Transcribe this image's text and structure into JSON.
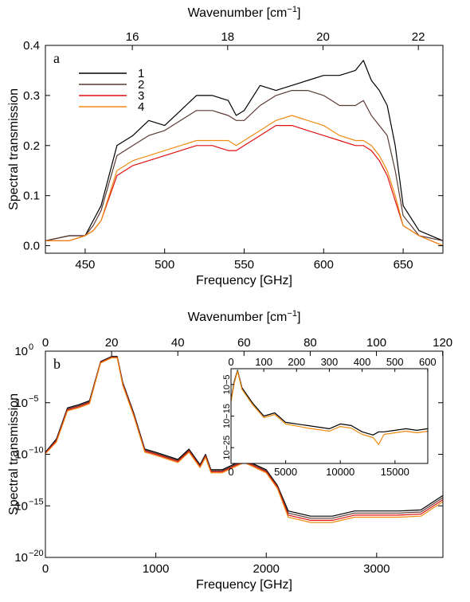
{
  "figure": "two-panel spectral transmission",
  "chart_data": [
    {
      "type": "line",
      "panel_label": "a",
      "xlabel": "Frequency [GHz]",
      "ylabel": "Spectral transmission",
      "top_xlabel": "Wavenumber [cm",
      "top_xlabel_sup": "−1",
      "top_xlabel_end": "]",
      "xlim": [
        425,
        675
      ],
      "ylim": [
        -0.015,
        0.4
      ],
      "xticks": [
        450,
        500,
        550,
        600,
        650
      ],
      "yticks": [
        0.0,
        0.1,
        0.2,
        0.3,
        0.4
      ],
      "ytick_labels": [
        "0.0",
        "0.1",
        "0.2",
        "0.3",
        "0.4"
      ],
      "top_xticks": [
        16,
        18,
        20,
        22
      ],
      "legend_position": "top-left",
      "series": [
        {
          "name": "1",
          "color": "#000000",
          "x": [
            425,
            440,
            450,
            455,
            460,
            470,
            480,
            490,
            500,
            510,
            520,
            530,
            540,
            545,
            550,
            560,
            570,
            580,
            590,
            600,
            610,
            620,
            625,
            630,
            635,
            640,
            645,
            650,
            660,
            675
          ],
          "y": [
            0.01,
            0.02,
            0.02,
            0.05,
            0.08,
            0.2,
            0.22,
            0.25,
            0.24,
            0.27,
            0.3,
            0.3,
            0.29,
            0.26,
            0.27,
            0.32,
            0.31,
            0.32,
            0.33,
            0.34,
            0.34,
            0.35,
            0.37,
            0.33,
            0.31,
            0.28,
            0.2,
            0.08,
            0.03,
            0.01
          ]
        },
        {
          "name": "2",
          "color": "#5a3a34",
          "x": [
            425,
            440,
            450,
            455,
            460,
            470,
            480,
            490,
            500,
            510,
            520,
            530,
            540,
            545,
            550,
            560,
            570,
            580,
            590,
            600,
            610,
            620,
            625,
            630,
            635,
            640,
            645,
            650,
            660,
            675
          ],
          "y": [
            0.01,
            0.02,
            0.02,
            0.04,
            0.07,
            0.18,
            0.2,
            0.22,
            0.23,
            0.25,
            0.27,
            0.27,
            0.26,
            0.25,
            0.25,
            0.28,
            0.3,
            0.31,
            0.31,
            0.3,
            0.28,
            0.28,
            0.29,
            0.26,
            0.24,
            0.22,
            0.15,
            0.06,
            0.02,
            0.01
          ]
        },
        {
          "name": "3",
          "color": "#e01010",
          "x": [
            425,
            440,
            450,
            455,
            460,
            470,
            480,
            490,
            500,
            510,
            520,
            530,
            540,
            545,
            550,
            560,
            570,
            580,
            590,
            600,
            610,
            620,
            625,
            630,
            635,
            640,
            645,
            650,
            660,
            675
          ],
          "y": [
            0.01,
            0.01,
            0.02,
            0.03,
            0.05,
            0.14,
            0.16,
            0.17,
            0.18,
            0.19,
            0.2,
            0.2,
            0.19,
            0.19,
            0.2,
            0.22,
            0.24,
            0.24,
            0.23,
            0.22,
            0.21,
            0.2,
            0.2,
            0.19,
            0.17,
            0.14,
            0.09,
            0.04,
            0.02,
            0.0
          ]
        },
        {
          "name": "4",
          "color": "#f08a10",
          "x": [
            425,
            440,
            450,
            455,
            460,
            470,
            480,
            490,
            500,
            510,
            520,
            530,
            540,
            545,
            550,
            560,
            570,
            580,
            590,
            600,
            610,
            620,
            625,
            630,
            635,
            640,
            645,
            650,
            660,
            675
          ],
          "y": [
            0.01,
            0.01,
            0.02,
            0.03,
            0.05,
            0.15,
            0.17,
            0.18,
            0.19,
            0.2,
            0.21,
            0.21,
            0.21,
            0.2,
            0.21,
            0.23,
            0.25,
            0.26,
            0.25,
            0.24,
            0.22,
            0.21,
            0.21,
            0.2,
            0.18,
            0.15,
            0.1,
            0.04,
            0.02,
            0.0
          ]
        }
      ]
    },
    {
      "type": "line",
      "panel_label": "b",
      "xlabel": "Frequency [GHz]",
      "ylabel": "Spectral transmission",
      "top_xlabel": "Wavenumber [cm",
      "top_xlabel_sup": "−1",
      "top_xlabel_end": "]",
      "xlim": [
        0,
        3600
      ],
      "ylim_log10": [
        -20,
        0
      ],
      "log_scale_y": true,
      "xticks": [
        0,
        1000,
        2000,
        3000
      ],
      "ytick_exponents": [
        0,
        -5,
        -10,
        -15,
        -20
      ],
      "top_xticks": [
        0,
        20,
        40,
        60,
        80,
        100,
        120
      ],
      "series": [
        {
          "name": "1",
          "color": "#000000",
          "x": [
            0,
            100,
            200,
            300,
            400,
            500,
            600,
            650,
            700,
            800,
            900,
            1000,
            1200,
            1300,
            1400,
            1450,
            1500,
            1600,
            1700,
            1800,
            1900,
            2000,
            2100,
            2200,
            2400,
            2600,
            2800,
            3000,
            3200,
            3400,
            3600
          ],
          "log10_y": [
            -9.8,
            -8.5,
            -5.5,
            -5.2,
            -4.8,
            -1,
            -0.5,
            -0.5,
            -3,
            -6,
            -9.5,
            -9.8,
            -10.5,
            -9.5,
            -11,
            -10,
            -11.5,
            -11.5,
            -11,
            -10.5,
            -11,
            -11.5,
            -13,
            -15.5,
            -16,
            -16,
            -15.5,
            -15.5,
            -15.5,
            -15.4,
            -14
          ]
        },
        {
          "name": "2",
          "color": "#5a3a34",
          "x": [
            0,
            100,
            200,
            300,
            400,
            500,
            600,
            650,
            700,
            800,
            900,
            1000,
            1200,
            1300,
            1400,
            1450,
            1500,
            1600,
            1700,
            1800,
            1900,
            2000,
            2100,
            2200,
            2400,
            2600,
            2800,
            3000,
            3200,
            3400,
            3600
          ],
          "log10_y": [
            -9.85,
            -8.6,
            -5.6,
            -5.3,
            -4.9,
            -1.05,
            -0.55,
            -0.55,
            -3.1,
            -6.1,
            -9.6,
            -9.9,
            -10.6,
            -9.6,
            -11.1,
            -10.1,
            -11.6,
            -11.6,
            -11.1,
            -10.6,
            -11.1,
            -11.6,
            -13.1,
            -15.7,
            -16.2,
            -16.2,
            -15.7,
            -15.7,
            -15.7,
            -15.6,
            -14.2
          ]
        },
        {
          "name": "3",
          "color": "#e01010",
          "x": [
            0,
            100,
            200,
            300,
            400,
            500,
            600,
            650,
            700,
            800,
            900,
            1000,
            1200,
            1300,
            1400,
            1450,
            1500,
            1600,
            1700,
            1800,
            1900,
            2000,
            2100,
            2200,
            2400,
            2600,
            2800,
            3000,
            3200,
            3400,
            3600
          ],
          "log10_y": [
            -9.9,
            -8.7,
            -5.7,
            -5.4,
            -5,
            -1.1,
            -0.6,
            -0.6,
            -3.2,
            -6.2,
            -9.7,
            -10,
            -10.7,
            -9.7,
            -11.2,
            -10.2,
            -11.7,
            -11.7,
            -11.2,
            -10.7,
            -11.2,
            -11.7,
            -13.2,
            -15.9,
            -16.4,
            -16.4,
            -15.9,
            -15.9,
            -15.9,
            -15.8,
            -14.4
          ]
        },
        {
          "name": "4",
          "color": "#f08a10",
          "x": [
            0,
            100,
            200,
            300,
            400,
            500,
            600,
            650,
            700,
            800,
            900,
            1000,
            1200,
            1300,
            1400,
            1450,
            1500,
            1600,
            1700,
            1800,
            1900,
            2000,
            2100,
            2200,
            2400,
            2600,
            2800,
            3000,
            3200,
            3400,
            3600
          ],
          "log10_y": [
            -9.95,
            -8.8,
            -5.8,
            -5.5,
            -5.1,
            -1.15,
            -0.65,
            -0.65,
            -3.3,
            -6.3,
            -9.8,
            -10.1,
            -10.8,
            -9.8,
            -11.3,
            -10.3,
            -11.8,
            -11.8,
            -11.3,
            -10.8,
            -11.3,
            -11.8,
            -13.3,
            -16.1,
            -16.6,
            -16.6,
            -16.1,
            -16.1,
            -16.1,
            -16,
            -14.6
          ]
        }
      ],
      "inset": {
        "xlim": [
          0,
          18000
        ],
        "xticks": [
          0,
          5000,
          10000,
          15000
        ],
        "top_xticks": [
          0,
          100,
          200,
          300,
          400,
          500,
          600
        ],
        "ylim_log10": [
          -30,
          0
        ],
        "ytick_exponents": [
          -5,
          -15,
          -25
        ],
        "series": [
          {
            "name": "1",
            "color": "#000000",
            "x": [
              0,
              300,
              600,
              1000,
              2000,
              3000,
              4000,
              5000,
              7000,
              9000,
              10000,
              11000,
              12000,
              13000,
              13500,
              14000,
              15000,
              16000,
              17000,
              18000
            ],
            "log10_y": [
              -10,
              -4,
              -0.5,
              -6,
              -11,
              -15,
              -14,
              -17,
              -18,
              -19,
              -17.5,
              -18,
              -20,
              -21,
              -20,
              -20,
              -19.5,
              -19,
              -19.5,
              -19
            ]
          },
          {
            "name": "4",
            "color": "#f08a10",
            "x": [
              0,
              300,
              600,
              1000,
              2000,
              3000,
              4000,
              5000,
              7000,
              9000,
              10000,
              11000,
              12000,
              13000,
              13500,
              14000,
              15000,
              16000,
              17000,
              18000
            ],
            "log10_y": [
              -10.5,
              -4.5,
              -0.8,
              -6.5,
              -11.5,
              -15.5,
              -14.5,
              -17.5,
              -18.8,
              -19.8,
              -18.3,
              -18.8,
              -20.8,
              -21.8,
              -24,
              -20.8,
              -20.3,
              -19.8,
              -20.3,
              -19.8
            ]
          }
        ]
      }
    }
  ]
}
